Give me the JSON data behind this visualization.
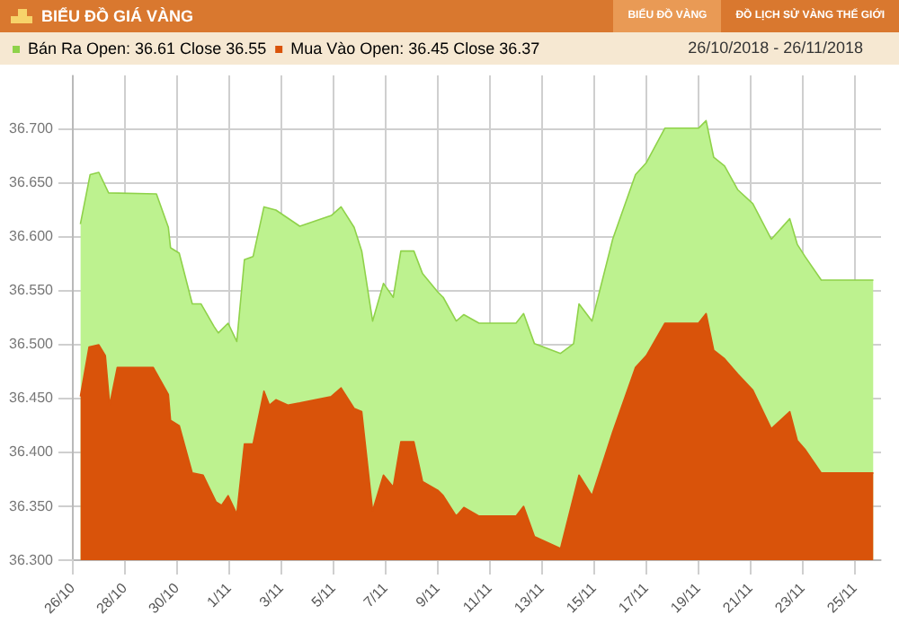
{
  "chart_data": {
    "type": "area",
    "title": "BIỂU ĐỒ GIÁ VÀNG",
    "subtitle": "26/10/2018 - 26/11/2018",
    "annotations": [
      "BIỂU ĐỒ VÀNG",
      "ĐỒ LỊCH SỬ VÀNG THẾ GIỚI"
    ],
    "series": [
      {
        "name": "Bán Ra Open: 36.61 Close 36.55",
        "color": "#8fd24a",
        "x": [
          "2018-10-26T07:00",
          "2018-10-26T16:00",
          "2018-10-27T00:00",
          "2018-10-27T09:00",
          "2018-10-29T05:00",
          "2018-10-29T16:00",
          "2018-10-29T18:00",
          "2018-10-30T02:00",
          "2018-10-30T14:00",
          "2018-10-30T22:00",
          "2018-10-31T10:00",
          "2018-10-31T14:00",
          "2018-10-31T23:00",
          "2018-11-01T07:00",
          "2018-11-01T14:00",
          "2018-11-01T22:00",
          "2018-11-02T08:00",
          "2018-11-02T19:00",
          "2018-11-03T17:00",
          "2018-11-04T22:00",
          "2018-11-05T07:00",
          "2018-11-05T19:00",
          "2018-11-06T02:00",
          "2018-11-06T12:00",
          "2018-11-06T22:00",
          "2018-11-07T07:00",
          "2018-11-07T14:00",
          "2018-11-08T02:00",
          "2018-11-08T10:00",
          "2018-11-09T00:00",
          "2018-11-09T05:00",
          "2018-11-09T17:00",
          "2018-11-10T00:00",
          "2018-11-10T14:00",
          "2018-11-12T00:00",
          "2018-11-12T07:00",
          "2018-11-12T17:00",
          "2018-11-13T17:00",
          "2018-11-14T05:00",
          "2018-11-14T10:00",
          "2018-11-14T22:00",
          "2018-11-15T17:00",
          "2018-11-16T14:00",
          "2018-11-17T00:00",
          "2018-11-17T17:00",
          "2018-11-19T00:00",
          "2018-11-19T07:00",
          "2018-11-19T14:00",
          "2018-11-20T00:00",
          "2018-11-20T12:00",
          "2018-11-21T02:00",
          "2018-11-21T19:00",
          "2018-11-22T12:00",
          "2018-11-22T19:00",
          "2018-11-23T02:00",
          "2018-11-23T17:00",
          "2018-11-25T17:00"
        ],
        "values": [
          36.612,
          36.658,
          36.66,
          36.641,
          36.64,
          36.609,
          36.59,
          36.585,
          36.538,
          36.538,
          36.517,
          36.511,
          36.52,
          36.503,
          36.579,
          36.582,
          36.628,
          36.625,
          36.61,
          36.62,
          36.628,
          36.609,
          36.587,
          36.522,
          36.557,
          36.544,
          36.587,
          36.587,
          36.566,
          36.549,
          36.544,
          36.522,
          36.528,
          36.52,
          36.52,
          36.529,
          36.501,
          36.492,
          36.501,
          36.538,
          36.522,
          36.598,
          36.658,
          36.669,
          36.701,
          36.701,
          36.708,
          36.674,
          36.666,
          36.644,
          36.631,
          36.598,
          36.617,
          36.593,
          36.582,
          36.56,
          36.56
        ]
      },
      {
        "name": "Mua Vào Open: 36.45 Close 36.37",
        "color": "#d9530a",
        "x": [
          "2018-10-26T07:00",
          "2018-10-26T15:00",
          "2018-10-27T00:00",
          "2018-10-27T06:00",
          "2018-10-27T10:00",
          "2018-10-27T17:00",
          "2018-10-29T02:00",
          "2018-10-29T16:00",
          "2018-10-29T18:00",
          "2018-10-30T02:00",
          "2018-10-30T14:00",
          "2018-10-31T00:00",
          "2018-10-31T12:00",
          "2018-10-31T17:00",
          "2018-10-31T23:00",
          "2018-11-01T07:00",
          "2018-11-01T14:00",
          "2018-11-01T22:00",
          "2018-11-02T08:00",
          "2018-11-02T13:00",
          "2018-11-02T19:00",
          "2018-11-03T06:00",
          "2018-11-03T17:00",
          "2018-11-04T22:00",
          "2018-11-05T07:00",
          "2018-11-05T19:00",
          "2018-11-06T02:00",
          "2018-11-06T12:00",
          "2018-11-06T22:00",
          "2018-11-07T07:00",
          "2018-11-07T14:00",
          "2018-11-08T02:00",
          "2018-11-08T10:00",
          "2018-11-09T00:00",
          "2018-11-09T05:00",
          "2018-11-09T17:00",
          "2018-11-10T00:00",
          "2018-11-10T14:00",
          "2018-11-12T00:00",
          "2018-11-12T07:00",
          "2018-11-12T17:00",
          "2018-11-13T17:00",
          "2018-11-14T10:00",
          "2018-11-14T22:00",
          "2018-11-15T17:00",
          "2018-11-16T14:00",
          "2018-11-17T00:00",
          "2018-11-17T17:00",
          "2018-11-19T00:00",
          "2018-11-19T07:00",
          "2018-11-19T14:00",
          "2018-11-20T00:00",
          "2018-11-20T12:00",
          "2018-11-21T02:00",
          "2018-11-21T19:00",
          "2018-11-22T12:00",
          "2018-11-22T19:00",
          "2018-11-23T02:00",
          "2018-11-23T17:00",
          "2018-11-25T17:00"
        ],
        "values": [
          36.452,
          36.498,
          36.5,
          36.49,
          36.444,
          36.479,
          36.479,
          36.454,
          36.43,
          36.425,
          36.381,
          36.379,
          36.354,
          36.351,
          36.36,
          36.343,
          36.408,
          36.408,
          36.457,
          36.444,
          36.449,
          36.444,
          36.446,
          36.452,
          36.46,
          36.441,
          36.438,
          36.346,
          36.379,
          36.368,
          36.41,
          36.41,
          36.373,
          36.365,
          36.36,
          36.341,
          36.349,
          36.341,
          36.341,
          36.35,
          36.322,
          36.311,
          36.379,
          36.36,
          36.419,
          36.479,
          36.49,
          36.52,
          36.52,
          36.529,
          36.495,
          36.487,
          36.473,
          36.458,
          36.422,
          36.438,
          36.411,
          36.403,
          36.381,
          36.381
        ]
      }
    ],
    "xlim": [
      "2018-10-26",
      "2018-11-26"
    ],
    "xticks": [
      {
        "value": "2018-10-26",
        "label": "26/10"
      },
      {
        "value": "2018-10-28",
        "label": "28/10"
      },
      {
        "value": "2018-10-30",
        "label": "30/10"
      },
      {
        "value": "2018-11-01",
        "label": "1/11"
      },
      {
        "value": "2018-11-03",
        "label": "3/11"
      },
      {
        "value": "2018-11-05",
        "label": "5/11"
      },
      {
        "value": "2018-11-07",
        "label": "7/11"
      },
      {
        "value": "2018-11-09",
        "label": "9/11"
      },
      {
        "value": "2018-11-11",
        "label": "11/11"
      },
      {
        "value": "2018-11-13",
        "label": "13/11"
      },
      {
        "value": "2018-11-15",
        "label": "15/11"
      },
      {
        "value": "2018-11-17",
        "label": "17/11"
      },
      {
        "value": "2018-11-19",
        "label": "19/11"
      },
      {
        "value": "2018-11-21",
        "label": "21/11"
      },
      {
        "value": "2018-11-23",
        "label": "23/11"
      },
      {
        "value": "2018-11-25",
        "label": "25/11"
      }
    ],
    "ylim": [
      36.3,
      36.75
    ],
    "yticks": [
      {
        "value": 36.3,
        "label": "36.300"
      },
      {
        "value": 36.35,
        "label": "36.350"
      },
      {
        "value": 36.4,
        "label": "36.400"
      },
      {
        "value": 36.45,
        "label": "36.450"
      },
      {
        "value": 36.5,
        "label": "36.500"
      },
      {
        "value": 36.55,
        "label": "36.550"
      },
      {
        "value": 36.6,
        "label": "36.600"
      },
      {
        "value": 36.65,
        "label": "36.650"
      },
      {
        "value": 36.7,
        "label": "36.700"
      }
    ],
    "grid": true,
    "legend": "top left",
    "marker": "none",
    "line_style": "solid"
  }
}
